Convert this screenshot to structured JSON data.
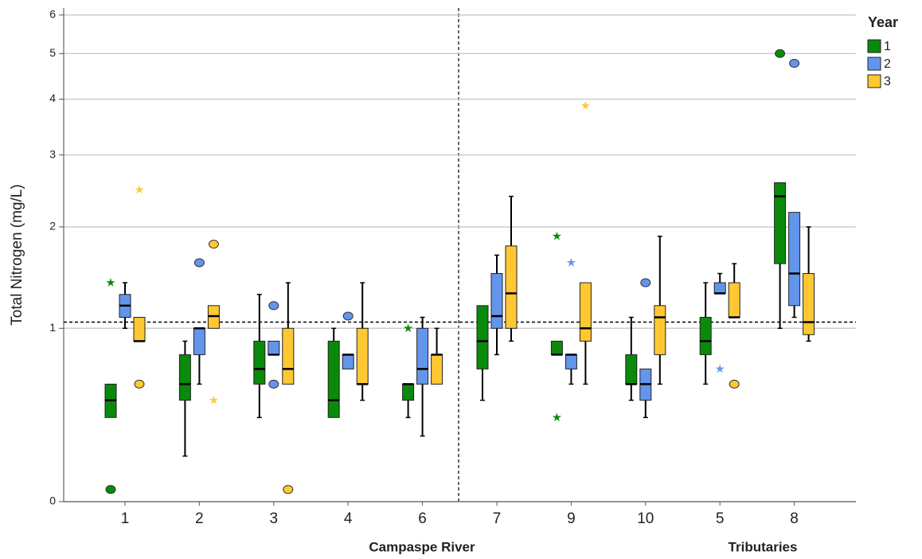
{
  "chart_data": {
    "type": "boxplot",
    "y_label": "Total Nitrogen (mg/L)",
    "y_scale": "log1p",
    "categories": [
      "1",
      "2",
      "3",
      "4",
      "6",
      "7",
      "9",
      "10",
      "5",
      "8"
    ],
    "groups": [
      {
        "label": "Campaspe River"
      },
      {
        "label": "Tributaries"
      }
    ],
    "legend_title": "Year",
    "legend_position": "top-right",
    "ylim": [
      0,
      6.2
    ],
    "yticks": [
      0,
      1,
      2,
      3,
      4,
      5,
      6
    ],
    "grid": true,
    "reference_line": 1.05,
    "series": [
      {
        "name": "1",
        "color": "#0a8a0a",
        "boxes": [
          {
            "min": 0.4,
            "q1": 0.4,
            "median": 0.5,
            "q3": 0.6,
            "max": 0.6,
            "outliers": [
              0.05
            ],
            "extremes": [
              1.4
            ]
          },
          {
            "min": 0.2,
            "q1": 0.5,
            "median": 0.6,
            "q3": 0.8,
            "max": 0.9,
            "outliers": [],
            "extremes": []
          },
          {
            "min": 0.4,
            "q1": 0.6,
            "median": 0.7,
            "q3": 0.9,
            "max": 1.29,
            "outliers": [],
            "extremes": []
          },
          {
            "min": 0.4,
            "q1": 0.4,
            "median": 0.5,
            "q3": 0.9,
            "max": 1.0,
            "outliers": [],
            "extremes": []
          },
          {
            "min": 0.4,
            "q1": 0.5,
            "median": 0.6,
            "q3": 0.6,
            "max": 0.6,
            "outliers": [],
            "extremes": [
              1.0
            ]
          },
          {
            "min": 0.5,
            "q1": 0.7,
            "median": 0.9,
            "q3": 1.19,
            "max": 1.19,
            "outliers": [],
            "extremes": []
          },
          {
            "min": 0.8,
            "q1": 0.8,
            "median": 0.8,
            "q3": 0.9,
            "max": 0.9,
            "outliers": [],
            "extremes": [
              1.89,
              0.4
            ]
          },
          {
            "min": 0.5,
            "q1": 0.6,
            "median": 0.6,
            "q3": 0.8,
            "max": 1.09,
            "outliers": [],
            "extremes": []
          },
          {
            "min": 0.6,
            "q1": 0.8,
            "median": 0.9,
            "q3": 1.09,
            "max": 1.4,
            "outliers": [],
            "extremes": []
          },
          {
            "min": 1.0,
            "q1": 1.59,
            "median": 2.39,
            "q3": 2.58,
            "max": 2.58,
            "outliers": [
              5.0
            ],
            "extremes": []
          }
        ]
      },
      {
        "name": "2",
        "color": "#6495ed",
        "boxes": [
          {
            "min": 1.0,
            "q1": 1.09,
            "median": 1.19,
            "q3": 1.29,
            "max": 1.4,
            "outliers": [],
            "extremes": []
          },
          {
            "min": 0.6,
            "q1": 0.8,
            "median": 1.0,
            "q3": 1.0,
            "max": 1.0,
            "outliers": [
              1.6
            ],
            "extremes": []
          },
          {
            "min": 0.8,
            "q1": 0.8,
            "median": 0.8,
            "q3": 0.9,
            "max": 0.9,
            "outliers": [
              1.19,
              0.6
            ],
            "extremes": []
          },
          {
            "min": 0.7,
            "q1": 0.7,
            "median": 0.8,
            "q3": 0.8,
            "max": 0.8,
            "outliers": [
              1.1
            ],
            "extremes": []
          },
          {
            "min": 0.3,
            "q1": 0.6,
            "median": 0.7,
            "q3": 1.0,
            "max": 1.09,
            "outliers": [],
            "extremes": []
          },
          {
            "min": 0.8,
            "q1": 1.0,
            "median": 1.1,
            "q3": 1.49,
            "max": 1.68,
            "outliers": [],
            "extremes": []
          },
          {
            "min": 0.6,
            "q1": 0.7,
            "median": 0.8,
            "q3": 0.8,
            "max": 0.8,
            "outliers": [],
            "extremes": [
              1.6
            ]
          },
          {
            "min": 0.4,
            "q1": 0.5,
            "median": 0.6,
            "q3": 0.7,
            "max": 0.7,
            "outliers": [
              1.4
            ],
            "extremes": []
          },
          {
            "min": 1.3,
            "q1": 1.3,
            "median": 1.3,
            "q3": 1.4,
            "max": 1.49,
            "outliers": [],
            "extremes": [
              0.7
            ]
          },
          {
            "min": 1.09,
            "q1": 1.19,
            "median": 1.49,
            "q3": 2.18,
            "max": 2.18,
            "outliers": [
              4.77
            ],
            "extremes": []
          }
        ]
      },
      {
        "name": "3",
        "color": "#ffc832",
        "boxes": [
          {
            "min": 0.9,
            "q1": 0.9,
            "median": 0.9,
            "q3": 1.09,
            "max": 1.09,
            "outliers": [
              0.6
            ],
            "extremes": [
              2.48
            ]
          },
          {
            "min": 1.0,
            "q1": 1.0,
            "median": 1.1,
            "q3": 1.19,
            "max": 1.19,
            "outliers": [
              1.8
            ],
            "extremes": [
              0.5
            ]
          },
          {
            "min": 0.6,
            "q1": 0.6,
            "median": 0.7,
            "q3": 1.0,
            "max": 1.4,
            "outliers": [
              0.05
            ],
            "extremes": []
          },
          {
            "min": 0.5,
            "q1": 0.6,
            "median": 0.6,
            "q3": 1.0,
            "max": 1.4,
            "outliers": [],
            "extremes": []
          },
          {
            "min": 0.6,
            "q1": 0.6,
            "median": 0.8,
            "q3": 0.8,
            "max": 1.0,
            "outliers": [],
            "extremes": []
          },
          {
            "min": 0.9,
            "q1": 1.0,
            "median": 1.3,
            "q3": 1.78,
            "max": 2.39,
            "outliers": [],
            "extremes": []
          },
          {
            "min": 0.6,
            "q1": 0.9,
            "median": 1.0,
            "q3": 1.4,
            "max": 1.4,
            "outliers": [],
            "extremes": [
              3.87
            ]
          },
          {
            "min": 0.6,
            "q1": 0.8,
            "median": 1.09,
            "q3": 1.19,
            "max": 1.89,
            "outliers": [],
            "extremes": []
          },
          {
            "min": 1.09,
            "q1": 1.09,
            "median": 1.09,
            "q3": 1.4,
            "max": 1.59,
            "outliers": [
              0.6
            ],
            "extremes": []
          },
          {
            "min": 0.9,
            "q1": 0.95,
            "median": 1.05,
            "q3": 1.49,
            "max": 2.0,
            "outliers": [],
            "extremes": []
          }
        ]
      }
    ]
  }
}
